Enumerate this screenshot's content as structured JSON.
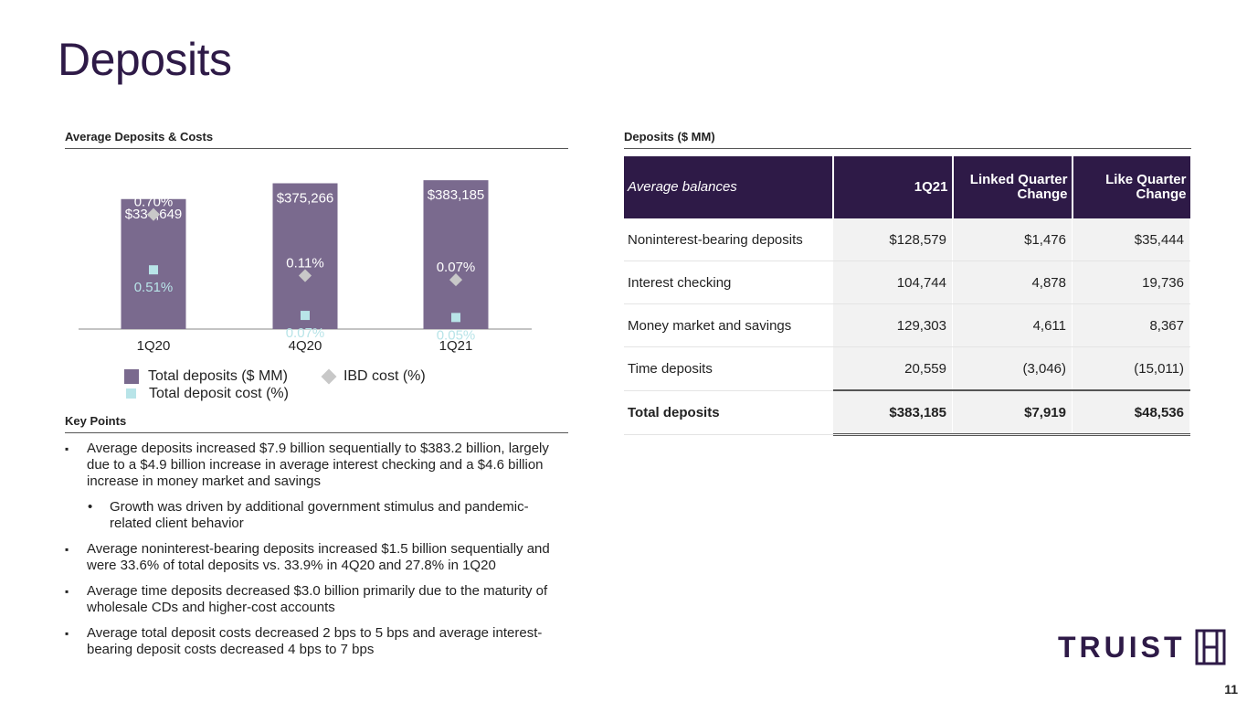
{
  "slide": {
    "title": "Deposits",
    "page_number": "11"
  },
  "chart_section": {
    "header": "Average Deposits & Costs"
  },
  "chart_data": {
    "type": "bar",
    "categories": [
      "1Q20",
      "4Q20",
      "1Q21"
    ],
    "series": [
      {
        "name": "Total deposits ($ MM)",
        "values": [
          334649,
          375266,
          383185
        ],
        "labels": [
          "$334,649",
          "$375,266",
          "$383,185"
        ],
        "color": "#7a6a8e"
      },
      {
        "name": "IBD cost (%)",
        "values": [
          0.7,
          0.11,
          0.07
        ],
        "labels": [
          "0.70%",
          "0.11%",
          "0.07%"
        ],
        "color": "#c8c8c8"
      },
      {
        "name": "Total deposit cost (%)",
        "values": [
          0.51,
          0.07,
          0.05
        ],
        "labels": [
          "0.51%",
          "0.07%",
          "0.05%"
        ],
        "color": "#b8e4e8"
      }
    ]
  },
  "key_points": {
    "header": "Key Points",
    "items": [
      "Average deposits increased $7.9 billion sequentially to $383.2 billion, largely due to a $4.9 billion increase in average interest checking and a $4.6 billion increase in money market and savings",
      "Average noninterest-bearing deposits increased $1.5 billion sequentially and were 33.6% of total deposits vs. 33.9% in 4Q20 and 27.8% in 1Q20",
      "Average time deposits decreased $3.0 billion primarily due to the maturity of wholesale CDs and higher-cost accounts",
      "Average total deposit costs decreased 2 bps to 5 bps and average interest-bearing deposit costs decreased 4 bps to 7 bps"
    ],
    "sub_item": "Growth was driven by additional government stimulus and pandemic-related client behavior",
    "bullet": "▪",
    "sub_bullet": "•"
  },
  "table_section": {
    "header": "Deposits ($ MM)",
    "columns": [
      "Average balances",
      "1Q21",
      "Linked Quarter Change",
      "Like Quarter Change"
    ],
    "rows": [
      [
        "Noninterest-bearing deposits",
        "$128,579",
        "$1,476",
        "$35,444"
      ],
      [
        "Interest checking",
        "104,744",
        "4,878",
        "19,736"
      ],
      [
        "Money market and savings",
        "129,303",
        "4,611",
        "8,367"
      ],
      [
        "Time deposits",
        "20,559",
        "(3,046)",
        "(15,011)"
      ],
      [
        "Total deposits",
        "$383,185",
        "$7,919",
        "$48,536"
      ]
    ]
  },
  "logo": {
    "text": "TRUIST",
    "color": "#2e1a47"
  }
}
